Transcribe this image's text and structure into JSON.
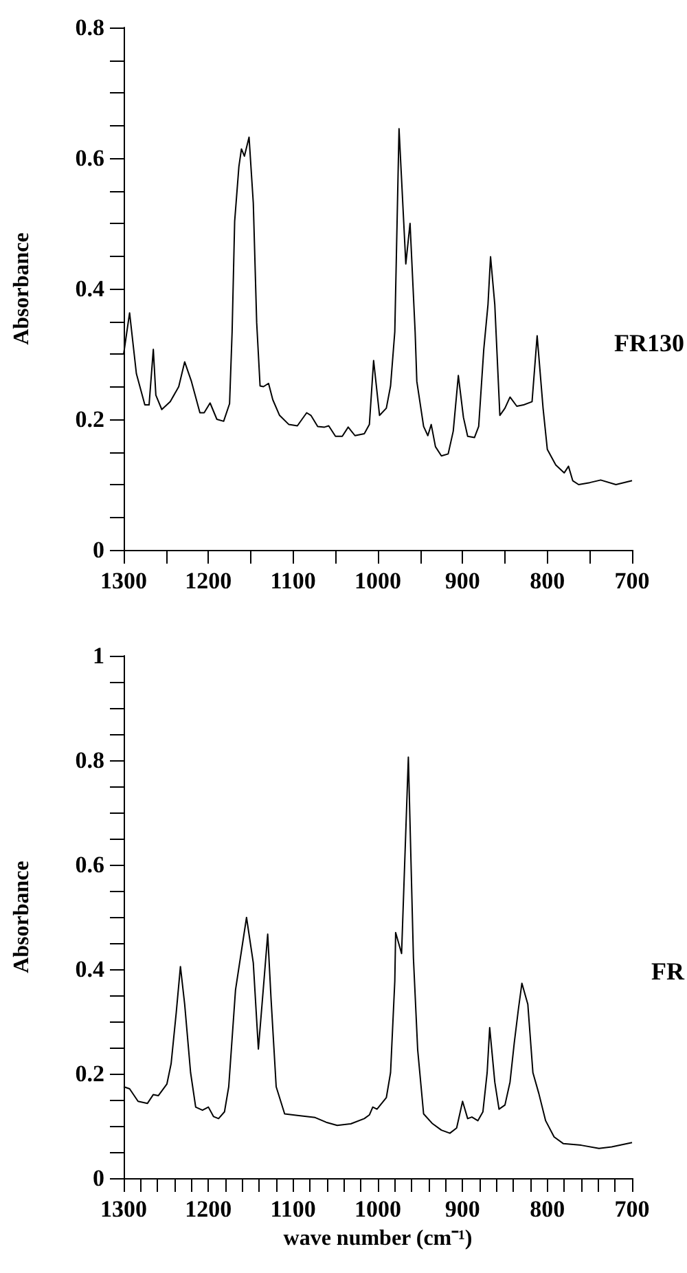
{
  "chart_data": [
    {
      "type": "line",
      "ylabel": "Absorbance",
      "xlim": [
        1300,
        700
      ],
      "ylim": [
        0,
        0.8
      ],
      "xticks": [
        1300,
        {
          "value": 1250,
          "label": null
        },
        1200,
        {
          "value": 1150,
          "label": null
        },
        1100,
        {
          "value": 1050,
          "label": null
        },
        1000,
        {
          "value": 950,
          "label": null
        },
        900,
        {
          "value": 850,
          "label": null
        },
        800,
        {
          "value": 750,
          "label": null
        },
        700
      ],
      "yticks": [
        0,
        {
          "value": 0.05,
          "label": null
        },
        {
          "value": 0.1,
          "label": null
        },
        {
          "value": 0.15,
          "label": null
        },
        0.2,
        {
          "value": 0.25,
          "label": null
        },
        {
          "value": 0.3,
          "label": null
        },
        {
          "value": 0.35,
          "label": null
        },
        0.4,
        {
          "value": 0.45,
          "label": null
        },
        {
          "value": 0.5,
          "label": null
        },
        {
          "value": 0.55,
          "label": null
        },
        0.6,
        {
          "value": 0.65,
          "label": null
        },
        {
          "value": 0.7,
          "label": null
        },
        {
          "value": 0.75,
          "label": null
        },
        0.8
      ],
      "grid": false,
      "series": [
        {
          "name": "FR130",
          "color": "#000000",
          "x": [
            1300,
            1293,
            1285,
            1275,
            1270,
            1265,
            1262,
            1255,
            1245,
            1235,
            1228,
            1220,
            1210,
            1205,
            1198,
            1190,
            1182,
            1175,
            1172,
            1169,
            1164,
            1161,
            1157.5,
            1152,
            1147,
            1143,
            1139,
            1135,
            1129,
            1124,
            1116,
            1105,
            1095,
            1084,
            1079,
            1071,
            1063,
            1058,
            1050,
            1042,
            1035,
            1027,
            1016,
            1010,
            1005,
            998,
            990,
            985,
            980,
            975,
            967,
            962,
            956,
            954,
            946,
            941,
            937,
            932,
            925,
            917,
            911,
            905,
            899,
            894,
            886,
            881,
            875,
            870,
            867,
            862,
            856,
            850,
            844,
            836,
            828,
            818,
            812,
            805,
            800,
            790,
            780,
            775,
            770,
            763,
            750,
            737,
            719,
            700
          ],
          "values": [
            0.3,
            0.363,
            0.27,
            0.222,
            0.222,
            0.307,
            0.237,
            0.215,
            0.227,
            0.25,
            0.288,
            0.258,
            0.21,
            0.21,
            0.225,
            0.2,
            0.197,
            0.224,
            0.334,
            0.503,
            0.587,
            0.614,
            0.603,
            0.632,
            0.531,
            0.348,
            0.251,
            0.25,
            0.255,
            0.23,
            0.206,
            0.192,
            0.19,
            0.21,
            0.206,
            0.189,
            0.188,
            0.19,
            0.174,
            0.174,
            0.188,
            0.175,
            0.178,
            0.192,
            0.29,
            0.206,
            0.217,
            0.251,
            0.334,
            0.645,
            0.438,
            0.5,
            0.334,
            0.258,
            0.189,
            0.175,
            0.192,
            0.158,
            0.144,
            0.147,
            0.182,
            0.267,
            0.203,
            0.174,
            0.172,
            0.189,
            0.307,
            0.376,
            0.449,
            0.376,
            0.206,
            0.217,
            0.234,
            0.22,
            0.222,
            0.227,
            0.328,
            0.217,
            0.154,
            0.13,
            0.118,
            0.128,
            0.106,
            0.1,
            0.103,
            0.107,
            0.1,
            0.106
          ]
        }
      ]
    },
    {
      "type": "line",
      "xlabel": "wave number (cm⁻¹)",
      "ylabel": "Absorbance",
      "xlim": [
        1300,
        700
      ],
      "ylim": [
        0,
        1
      ],
      "xticks": [
        1300,
        {
          "value": 1280,
          "label": null
        },
        {
          "value": 1260,
          "label": null
        },
        {
          "value": 1240,
          "label": null
        },
        {
          "value": 1220,
          "label": null
        },
        1200,
        {
          "value": 1180,
          "label": null
        },
        {
          "value": 1160,
          "label": null
        },
        {
          "value": 1140,
          "label": null
        },
        {
          "value": 1120,
          "label": null
        },
        1100,
        {
          "value": 1080,
          "label": null
        },
        {
          "value": 1060,
          "label": null
        },
        {
          "value": 1040,
          "label": null
        },
        {
          "value": 1020,
          "label": null
        },
        1000,
        {
          "value": 980,
          "label": null
        },
        {
          "value": 960,
          "label": null
        },
        {
          "value": 940,
          "label": null
        },
        {
          "value": 920,
          "label": null
        },
        900,
        {
          "value": 880,
          "label": null
        },
        {
          "value": 860,
          "label": null
        },
        {
          "value": 840,
          "label": null
        },
        {
          "value": 820,
          "label": null
        },
        800,
        {
          "value": 780,
          "label": null
        },
        {
          "value": 760,
          "label": null
        },
        {
          "value": 740,
          "label": null
        },
        {
          "value": 720,
          "label": null
        },
        700
      ],
      "yticks": [
        0,
        {
          "value": 0.05,
          "label": null
        },
        {
          "value": 0.1,
          "label": null
        },
        {
          "value": 0.15,
          "label": null
        },
        0.2,
        {
          "value": 0.25,
          "label": null
        },
        {
          "value": 0.3,
          "label": null
        },
        {
          "value": 0.35,
          "label": null
        },
        0.4,
        {
          "value": 0.45,
          "label": null
        },
        {
          "value": 0.5,
          "label": null
        },
        {
          "value": 0.55,
          "label": null
        },
        0.6,
        {
          "value": 0.65,
          "label": null
        },
        {
          "value": 0.7,
          "label": null
        },
        {
          "value": 0.75,
          "label": null
        },
        0.8,
        {
          "value": 0.85,
          "label": null
        },
        {
          "value": 0.9,
          "label": null
        },
        {
          "value": 0.95,
          "label": null
        },
        1
      ],
      "grid": false,
      "series": [
        {
          "name": "FR",
          "color": "#000000",
          "x": [
            1300,
            1293,
            1283,
            1272,
            1265,
            1259,
            1249,
            1244,
            1238,
            1233,
            1228,
            1221,
            1215,
            1207,
            1200,
            1194,
            1188,
            1181,
            1176,
            1168,
            1155,
            1147,
            1141,
            1134,
            1130,
            1126,
            1120,
            1110,
            1095,
            1074,
            1061,
            1048,
            1032,
            1016,
            1010,
            1006,
            1001,
            990,
            985,
            980,
            979,
            972,
            964,
            958,
            953,
            946,
            936,
            925,
            915,
            907,
            900,
            894,
            889,
            882,
            876,
            871,
            868,
            862,
            857,
            850,
            844,
            839,
            834,
            830,
            823,
            817,
            810,
            802,
            792,
            781,
            760,
            739,
            724,
            700
          ],
          "values": [
            0.175,
            0.171,
            0.147,
            0.143,
            0.16,
            0.158,
            0.18,
            0.219,
            0.316,
            0.405,
            0.333,
            0.202,
            0.136,
            0.13,
            0.136,
            0.118,
            0.114,
            0.127,
            0.175,
            0.36,
            0.499,
            0.412,
            0.247,
            0.386,
            0.467,
            0.342,
            0.175,
            0.123,
            0.12,
            0.116,
            0.107,
            0.101,
            0.104,
            0.114,
            0.121,
            0.136,
            0.132,
            0.154,
            0.202,
            0.377,
            0.47,
            0.43,
            0.806,
            0.421,
            0.246,
            0.123,
            0.105,
            0.092,
            0.086,
            0.096,
            0.147,
            0.114,
            0.117,
            0.11,
            0.127,
            0.202,
            0.288,
            0.184,
            0.132,
            0.14,
            0.184,
            0.259,
            0.325,
            0.373,
            0.333,
            0.202,
            0.162,
            0.11,
            0.079,
            0.066,
            0.063,
            0.057,
            0.06,
            0.068
          ]
        }
      ]
    }
  ]
}
